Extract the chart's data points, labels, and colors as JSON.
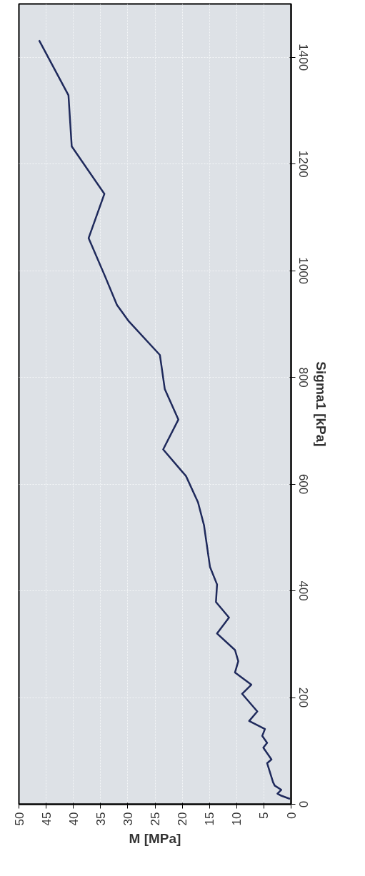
{
  "chart_data": {
    "type": "line",
    "xlabel": "M [MPa]",
    "ylabel": "Sigma1 [kPa]",
    "color": "#1f2a5c",
    "grid": true,
    "line_style": "solid",
    "x": [
      0.2,
      1.8,
      2.5,
      1.8,
      3,
      3.3,
      4.4,
      3.6,
      5.1,
      4.4,
      5.3,
      4.8,
      7.7,
      6.2,
      9.0,
      7.3,
      10.3,
      9.7,
      10.3,
      13.6,
      11.4,
      13.8,
      13.6,
      14.9,
      16.0,
      17.1,
      19.3,
      23.5,
      20.7,
      23.2,
      24.1,
      29.8,
      32,
      34.2,
      37.2,
      34.3,
      40.3,
      40.9,
      46.3
    ],
    "values": [
      10,
      16,
      20,
      27,
      35,
      41,
      77,
      84,
      106,
      115,
      128,
      141,
      156,
      174,
      207,
      224,
      247,
      268,
      289,
      320,
      350,
      379,
      412,
      445,
      523,
      566,
      615,
      665,
      721,
      778,
      842,
      905,
      936,
      990,
      1061,
      1144,
      1233,
      1329,
      1432
    ],
    "xlim": [
      50,
      0
    ],
    "xticks": [
      50,
      45,
      40,
      35,
      30,
      25,
      20,
      15,
      10,
      5,
      0
    ],
    "ylim": [
      0,
      1500
    ],
    "yticks": [
      0,
      200,
      400,
      600,
      800,
      1000,
      1200,
      1400
    ]
  }
}
